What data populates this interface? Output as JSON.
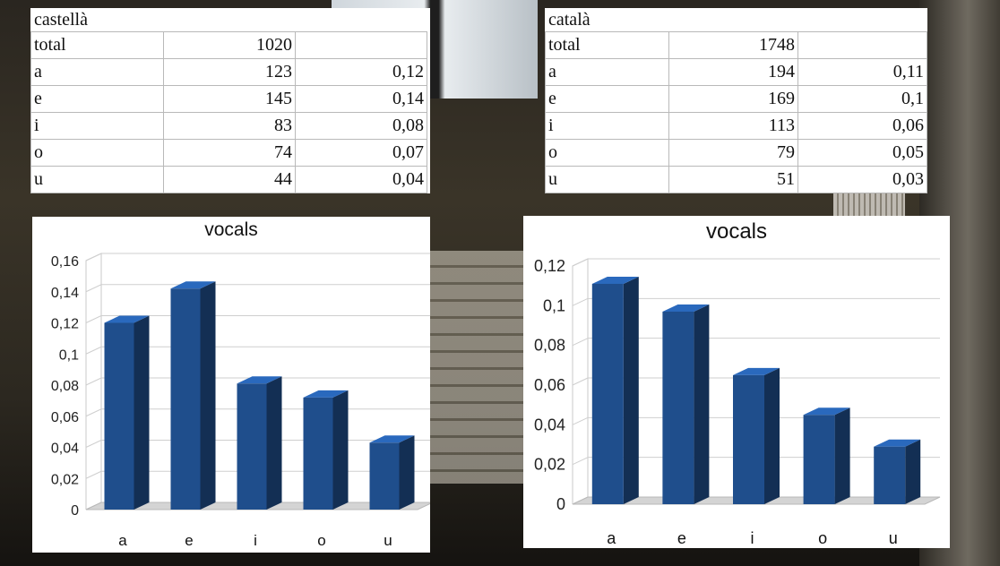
{
  "tables": [
    {
      "title": "castellà",
      "rows": [
        {
          "label": "total",
          "count": "1020",
          "freq": ""
        },
        {
          "label": "a",
          "count": "123",
          "freq": "0,12"
        },
        {
          "label": "e",
          "count": "145",
          "freq": "0,14"
        },
        {
          "label": "i",
          "count": "83",
          "freq": "0,08"
        },
        {
          "label": "o",
          "count": "74",
          "freq": "0,07"
        },
        {
          "label": "u",
          "count": "44",
          "freq": "0,04"
        }
      ]
    },
    {
      "title": "català",
      "rows": [
        {
          "label": "total",
          "count": "1748",
          "freq": ""
        },
        {
          "label": "a",
          "count": "194",
          "freq": "0,11"
        },
        {
          "label": "e",
          "count": "169",
          "freq": "0,1"
        },
        {
          "label": "i",
          "count": "113",
          "freq": "0,06"
        },
        {
          "label": "o",
          "count": "79",
          "freq": "0,05"
        },
        {
          "label": "u",
          "count": "51",
          "freq": "0,03"
        }
      ]
    }
  ],
  "chart_data": [
    {
      "type": "bar",
      "title": "vocals",
      "categories": [
        "a",
        "e",
        "i",
        "o",
        "u"
      ],
      "values": [
        0.12,
        0.142,
        0.081,
        0.072,
        0.043
      ],
      "ylim": [
        0,
        0.16
      ],
      "ticks": [
        "0",
        "0,02",
        "0,04",
        "0,06",
        "0,08",
        "0,1",
        "0,12",
        "0,14",
        "0,16"
      ],
      "grid": true,
      "bar_color": "#1f4e8c"
    },
    {
      "type": "bar",
      "title": "vocals",
      "categories": [
        "a",
        "e",
        "i",
        "o",
        "u"
      ],
      "values": [
        0.111,
        0.097,
        0.065,
        0.045,
        0.029
      ],
      "ylim": [
        0,
        0.12
      ],
      "ticks": [
        "0",
        "0,02",
        "0,04",
        "0,06",
        "0,08",
        "0,1",
        "0,12"
      ],
      "grid": true,
      "bar_color": "#1f4e8c"
    }
  ]
}
